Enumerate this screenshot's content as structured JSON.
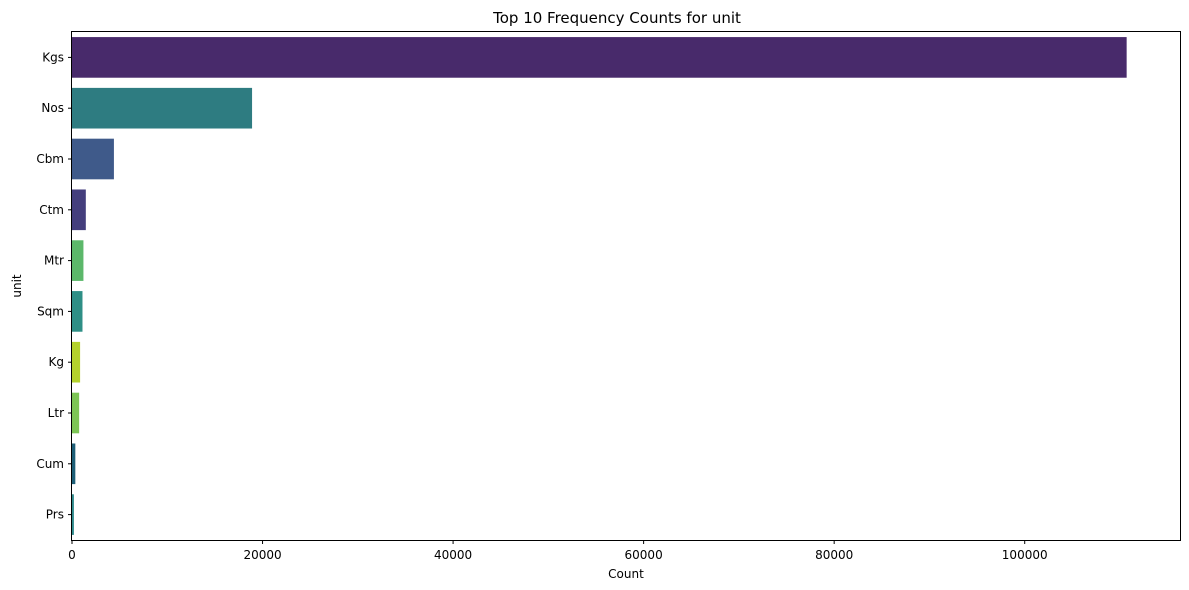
{
  "chart_data": {
    "type": "bar",
    "orientation": "horizontal",
    "title": "Top 10 Frequency Counts for unit",
    "xlabel": "Count",
    "ylabel": "unit",
    "categories": [
      "Kgs",
      "Nos",
      "Cbm",
      "Ctm",
      "Mtr",
      "Sqm",
      "Kg",
      "Ltr",
      "Cum",
      "Prs"
    ],
    "values": [
      110700,
      18900,
      4400,
      1450,
      1200,
      1100,
      850,
      750,
      350,
      200
    ],
    "colors": [
      "#482a6b",
      "#2e7c81",
      "#3f5a8a",
      "#443e7d",
      "#5cb86a",
      "#2e8f86",
      "#b4d22c",
      "#7dc555",
      "#1e5f77",
      "#2f8a8c"
    ],
    "xlim": [
      0,
      116300
    ],
    "xticks": [
      0,
      20000,
      40000,
      60000,
      80000,
      100000
    ],
    "xtick_labels": [
      "0",
      "20000",
      "40000",
      "60000",
      "80000",
      "100000"
    ],
    "grid": false,
    "legend": "none"
  }
}
